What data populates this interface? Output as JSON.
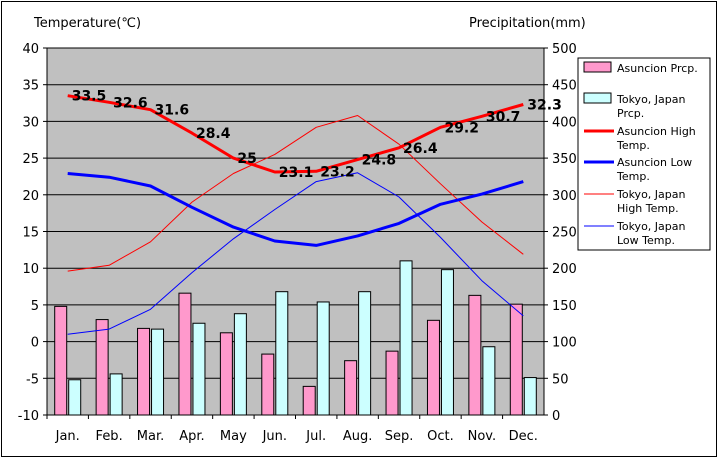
{
  "chart_data": {
    "type": "bar+line",
    "categories": [
      "Jan.",
      "Feb.",
      "Mar.",
      "Apr.",
      "May",
      "Jun.",
      "Jul.",
      "Aug.",
      "Sep.",
      "Oct.",
      "Nov.",
      "Dec."
    ],
    "left_axis": {
      "label": "Temperature(℃)",
      "min": -10,
      "max": 40,
      "ticks": [
        -10,
        -5,
        0,
        5,
        10,
        15,
        20,
        25,
        30,
        35,
        40
      ]
    },
    "right_axis": {
      "label": "Precipitation(mm)",
      "min": 0,
      "max": 500,
      "ticks": [
        0,
        50,
        100,
        150,
        200,
        250,
        300,
        350,
        400,
        450,
        500
      ]
    },
    "grid": true,
    "plot_background": "#c0c0c0",
    "legend_position": "right",
    "bar_series": [
      {
        "name": "Asuncion Prcp.",
        "color": "#ff99cc",
        "values": [
          148,
          130,
          118,
          166,
          112,
          83,
          39,
          74,
          87,
          129,
          163,
          151
        ]
      },
      {
        "name": "Tokyo, Japan Prcp.",
        "color": "#ccffff",
        "values": [
          48,
          56,
          117,
          125,
          138,
          168,
          154,
          168,
          210,
          198,
          93,
          51
        ]
      }
    ],
    "line_series": [
      {
        "name": "Asuncion High Temp.",
        "color": "#ff0000",
        "width": 3,
        "labels": true,
        "values": [
          33.5,
          32.6,
          31.6,
          28.4,
          25,
          23.1,
          23.2,
          24.8,
          26.4,
          29.2,
          30.7,
          32.3
        ],
        "label_text": [
          "33.5",
          "32.6",
          "31.6",
          "28.4",
          "25",
          "23.1",
          "23.2",
          "24.8",
          "26.4",
          "29.2",
          "30.7",
          "32.3"
        ]
      },
      {
        "name": "Asuncion Low Temp.",
        "color": "#0000ff",
        "width": 3,
        "labels": false,
        "values": [
          22.9,
          22.4,
          21.2,
          18.3,
          15.6,
          13.7,
          13.1,
          14.4,
          16.1,
          18.7,
          20.1,
          21.8
        ]
      },
      {
        "name": "Tokyo, Japan High Temp.",
        "color": "#ff0000",
        "width": 1,
        "labels": false,
        "values": [
          9.6,
          10.4,
          13.6,
          19.0,
          22.9,
          25.5,
          29.2,
          30.8,
          26.9,
          21.5,
          16.3,
          11.9
        ]
      },
      {
        "name": "Tokyo, Japan Low Temp.",
        "color": "#0000ff",
        "width": 1,
        "labels": false,
        "values": [
          1.0,
          1.7,
          4.4,
          9.4,
          14.0,
          18.0,
          21.8,
          23.0,
          19.7,
          14.2,
          8.3,
          3.5
        ]
      }
    ],
    "legend": [
      {
        "kind": "bar",
        "color": "#ff99cc",
        "lines": [
          "Asuncion Prcp."
        ]
      },
      {
        "kind": "bar",
        "color": "#ccffff",
        "lines": [
          "Tokyo, Japan",
          "Prcp."
        ]
      },
      {
        "kind": "line",
        "color": "#ff0000",
        "width": 3,
        "lines": [
          "Asuncion High",
          "Temp."
        ]
      },
      {
        "kind": "line",
        "color": "#0000ff",
        "width": 3,
        "lines": [
          "Asuncion Low",
          "Temp."
        ]
      },
      {
        "kind": "line",
        "color": "#ff0000",
        "width": 1,
        "lines": [
          "Tokyo, Japan",
          "High Temp."
        ]
      },
      {
        "kind": "line",
        "color": "#0000ff",
        "width": 1,
        "lines": [
          "Tokyo, Japan",
          "Low Temp."
        ]
      }
    ]
  }
}
